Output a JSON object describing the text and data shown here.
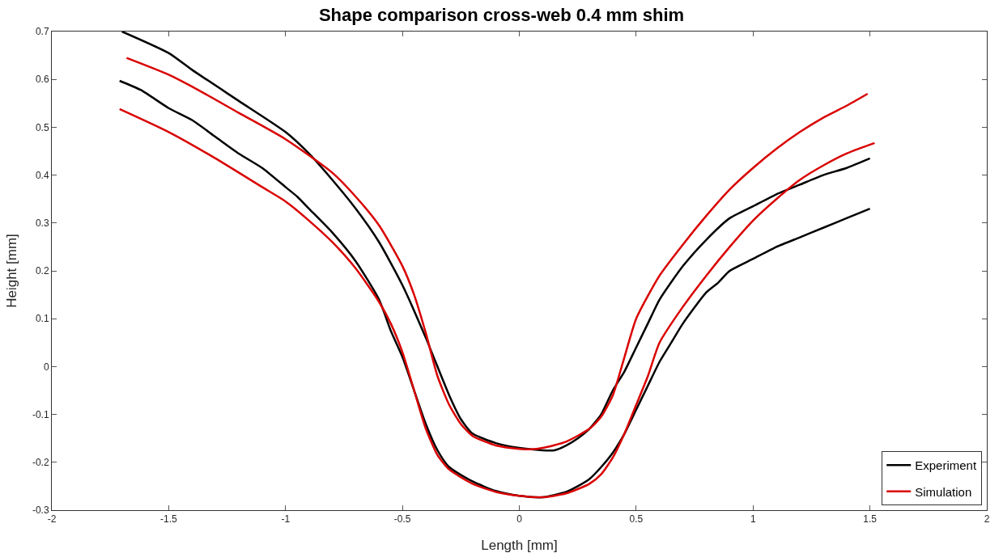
{
  "chart_data": {
    "type": "line",
    "title": "Shape comparison cross-web 0.4 mm shim",
    "xlabel": "Length [mm]",
    "ylabel": "Height [mm]",
    "xlim": [
      -2,
      2
    ],
    "xticks": [
      -2,
      -1.5,
      -1,
      -0.5,
      0,
      0.5,
      1,
      1.5,
      2
    ],
    "ylim": [
      -0.3,
      0.7
    ],
    "yticks": [
      -0.3,
      -0.2,
      -0.1,
      0,
      0.1,
      0.2,
      0.3,
      0.4,
      0.5,
      0.6,
      0.7
    ],
    "legend": "bottom right",
    "line_style": "solid",
    "marker": "none",
    "series": [
      {
        "name": "Experiment",
        "color": "#000000",
        "x": [
          -1.7,
          -1.5,
          -1.4,
          -1.2,
          -1.0,
          -0.9,
          -0.8,
          -0.7,
          -0.6,
          -0.5,
          -0.4,
          -0.3,
          -0.25,
          -0.2,
          -0.1,
          0,
          0.1,
          0.15,
          0.2,
          0.25,
          0.3,
          0.35,
          0.4,
          0.45,
          0.5,
          0.55,
          0.6,
          0.7,
          0.8,
          0.9,
          1.0,
          1.1,
          1.2,
          1.3,
          1.4,
          1.5
        ],
        "values": [
          0.7,
          0.655,
          0.62,
          0.555,
          0.49,
          0.445,
          0.39,
          0.33,
          0.26,
          0.17,
          0.06,
          -0.06,
          -0.11,
          -0.14,
          -0.16,
          -0.17,
          -0.175,
          -0.175,
          -0.165,
          -0.15,
          -0.13,
          -0.1,
          -0.05,
          -0.01,
          0.04,
          0.09,
          0.14,
          0.21,
          0.265,
          0.31,
          0.335,
          0.36,
          0.38,
          0.4,
          0.415,
          0.435
        ]
      },
      {
        "color": "#000000",
        "x": [
          -1.71,
          -1.62,
          -1.5,
          -1.4,
          -1.3,
          -1.2,
          -1.1,
          -1.0,
          -0.95,
          -0.9,
          -0.8,
          -0.7,
          -0.6,
          -0.55,
          -0.5,
          -0.45,
          -0.4,
          -0.35,
          -0.3,
          -0.2,
          -0.1,
          0,
          0.1,
          0.2,
          0.25,
          0.3,
          0.35,
          0.4,
          0.45,
          0.5,
          0.55,
          0.6,
          0.65,
          0.7,
          0.8,
          0.85,
          0.9,
          1.0,
          1.1,
          1.2,
          1.3,
          1.4,
          1.5
        ],
        "values": [
          0.597,
          0.578,
          0.54,
          0.515,
          0.48,
          0.445,
          0.415,
          0.375,
          0.355,
          0.33,
          0.28,
          0.22,
          0.14,
          0.075,
          0.02,
          -0.05,
          -0.12,
          -0.175,
          -0.21,
          -0.24,
          -0.26,
          -0.27,
          -0.273,
          -0.262,
          -0.25,
          -0.235,
          -0.21,
          -0.18,
          -0.14,
          -0.09,
          -0.04,
          0.01,
          0.05,
          0.09,
          0.155,
          0.175,
          0.2,
          0.225,
          0.25,
          0.27,
          0.29,
          0.31,
          0.33
        ]
      },
      {
        "name": "Simulation",
        "color": "#d90000",
        "x": [
          -1.68,
          -1.5,
          -1.4,
          -1.2,
          -1.0,
          -0.8,
          -0.7,
          -0.6,
          -0.5,
          -0.45,
          -0.4,
          -0.35,
          -0.3,
          -0.25,
          -0.2,
          -0.1,
          0,
          0.05,
          0.1,
          0.2,
          0.3,
          0.35,
          0.4,
          0.45,
          0.5,
          0.6,
          0.7,
          0.8,
          0.9,
          1.0,
          1.1,
          1.2,
          1.3,
          1.4,
          1.49
        ],
        "values": [
          0.645,
          0.61,
          0.585,
          0.53,
          0.475,
          0.405,
          0.355,
          0.295,
          0.21,
          0.15,
          0.07,
          -0.02,
          -0.08,
          -0.12,
          -0.145,
          -0.165,
          -0.172,
          -0.173,
          -0.17,
          -0.157,
          -0.13,
          -0.105,
          -0.06,
          0.02,
          0.1,
          0.19,
          0.255,
          0.315,
          0.37,
          0.415,
          0.455,
          0.49,
          0.52,
          0.545,
          0.57
        ]
      },
      {
        "color": "#d90000",
        "x": [
          -1.71,
          -1.5,
          -1.3,
          -1.1,
          -1.0,
          -0.9,
          -0.8,
          -0.7,
          -0.6,
          -0.55,
          -0.5,
          -0.45,
          -0.4,
          -0.35,
          -0.3,
          -0.2,
          -0.1,
          0,
          0.1,
          0.2,
          0.3,
          0.35,
          0.4,
          0.45,
          0.5,
          0.55,
          0.6,
          0.7,
          0.8,
          0.9,
          1.0,
          1.1,
          1.2,
          1.3,
          1.4,
          1.52
        ],
        "values": [
          0.538,
          0.49,
          0.435,
          0.375,
          0.345,
          0.305,
          0.26,
          0.205,
          0.135,
          0.09,
          0.03,
          -0.05,
          -0.13,
          -0.185,
          -0.215,
          -0.245,
          -0.262,
          -0.27,
          -0.273,
          -0.265,
          -0.245,
          -0.225,
          -0.19,
          -0.14,
          -0.08,
          -0.02,
          0.05,
          0.125,
          0.19,
          0.25,
          0.305,
          0.35,
          0.39,
          0.42,
          0.445,
          0.467
        ]
      }
    ]
  }
}
